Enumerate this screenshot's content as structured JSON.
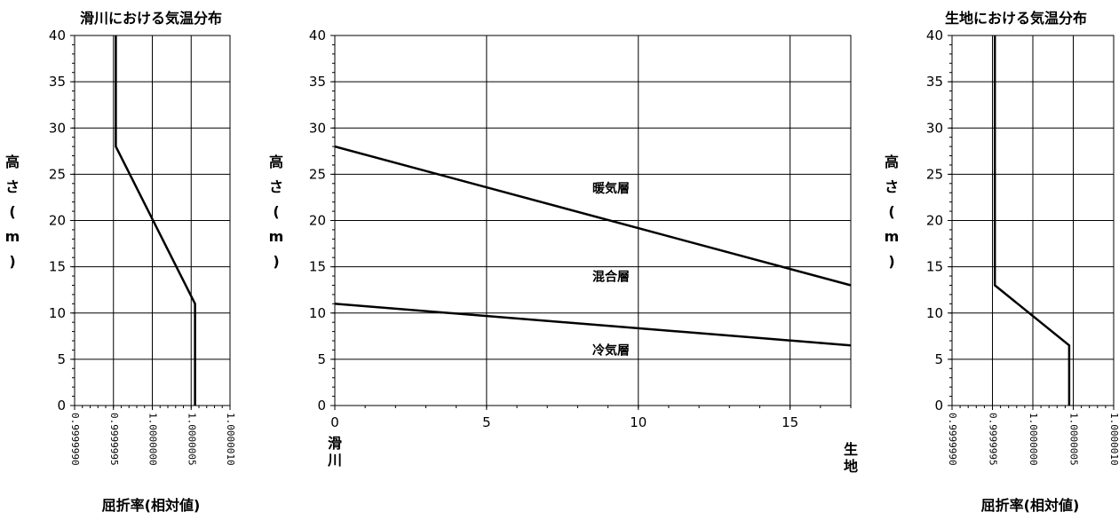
{
  "chart_data": [
    {
      "type": "line",
      "title": "滑川における気温分布",
      "xlabel": "屈折率(相対値)",
      "ylabel_chars": [
        "高",
        "さ",
        "(",
        "m",
        ")"
      ],
      "xlim": [
        0.999999,
        1.000001
      ],
      "ylim": [
        0,
        40
      ],
      "xticks": [
        "0.9999990",
        "0.9999995",
        "1.0000000",
        "1.0000005",
        "1.0000010"
      ],
      "yticks": [
        "0",
        "5",
        "10",
        "15",
        "20",
        "25",
        "30",
        "35",
        "40"
      ],
      "grid": true,
      "series": [
        {
          "x": [
            1.00000055,
            1.00000055,
            0.99999953,
            0.99999953
          ],
          "y": [
            0,
            11,
            28,
            40
          ]
        }
      ]
    },
    {
      "type": "line",
      "title": "",
      "ylabel_chars": [
        "高",
        "さ",
        "(",
        "m",
        ")"
      ],
      "xlim": [
        0,
        17
      ],
      "ylim": [
        0,
        40
      ],
      "xticks": [
        "0",
        "5",
        "10",
        "15"
      ],
      "yticks": [
        "0",
        "5",
        "10",
        "15",
        "20",
        "25",
        "30",
        "35",
        "40"
      ],
      "x_end_labels": {
        "left": [
          "滑",
          "川"
        ],
        "right": [
          "生",
          "地"
        ]
      },
      "grid": true,
      "series": [
        {
          "x": [
            0,
            17
          ],
          "y": [
            28,
            13
          ]
        },
        {
          "x": [
            0,
            17
          ],
          "y": [
            11,
            6.5
          ]
        }
      ],
      "annotations": [
        {
          "text": "暖気層",
          "x": 9.1,
          "y": 23
        },
        {
          "text": "混合層",
          "x": 9.1,
          "y": 13.5
        },
        {
          "text": "冷気層",
          "x": 9.1,
          "y": 5.5
        }
      ]
    },
    {
      "type": "line",
      "title": "生地における気温分布",
      "xlabel": "屈折率(相対値)",
      "ylabel_chars": [
        "高",
        "さ",
        "(",
        "m",
        ")"
      ],
      "xlim": [
        0.999999,
        1.000001
      ],
      "ylim": [
        0,
        40
      ],
      "xticks": [
        "0.9999990",
        "0.9999995",
        "1.0000000",
        "1.0000005",
        "1.0000010"
      ],
      "yticks": [
        "0",
        "5",
        "10",
        "15",
        "20",
        "25",
        "30",
        "35",
        "40"
      ],
      "grid": true,
      "series": [
        {
          "x": [
            1.00000045,
            1.00000045,
            0.99999953,
            0.99999953
          ],
          "y": [
            0,
            6.5,
            13,
            40
          ]
        }
      ]
    }
  ]
}
